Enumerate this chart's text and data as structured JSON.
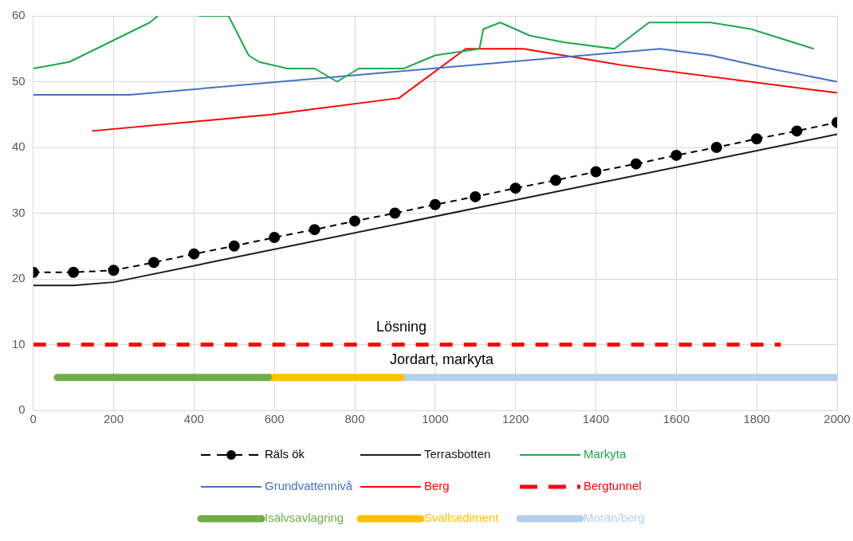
{
  "chart_data": {
    "type": "line",
    "xlim": [
      0,
      2000
    ],
    "xticks": [
      0,
      200,
      400,
      600,
      800,
      1000,
      1200,
      1400,
      1600,
      1800,
      2000
    ],
    "ylim": [
      0,
      60
    ],
    "yticks": [
      0,
      10,
      20,
      30,
      40,
      50,
      60
    ],
    "grid": true,
    "legend": "bottom",
    "annotations": [
      "Lösning",
      "Jordart, markyta"
    ],
    "series": [
      {
        "name": "Räls ök",
        "color": "#000000",
        "line_style": "dashed",
        "marker": "circle",
        "x": [
          0,
          100,
          200,
          300,
          400,
          500,
          600,
          700,
          800,
          900,
          1000,
          1100,
          1200,
          1300,
          1400,
          1500,
          1600,
          1700,
          1800,
          1900,
          2000
        ],
        "values": [
          21,
          21,
          21.3,
          22.5,
          23.8,
          25,
          26.3,
          27.5,
          28.8,
          30,
          31.3,
          32.5,
          33.8,
          35,
          36.3,
          37.5,
          38.8,
          40,
          41.3,
          42.5,
          43.8
        ]
      },
      {
        "name": "Terrasbotten",
        "color": "#1a1a1a",
        "line_style": "solid",
        "marker": "none",
        "x": [
          0,
          100,
          200,
          2000
        ],
        "values": [
          19,
          19,
          19.5,
          42
        ]
      },
      {
        "name": "Markyta",
        "color": "#1ea84f",
        "line_style": "solid",
        "marker": "none",
        "x": [
          0,
          90,
          290,
          310,
          360,
          412,
          440,
          486,
          536,
          562,
          632,
          700,
          756,
          810,
          922,
          1000,
          1110,
          1120,
          1162,
          1236,
          1320,
          1446,
          1532,
          1686,
          1786,
          1942
        ],
        "values": [
          52,
          53,
          59,
          60,
          null,
          60,
          60,
          60,
          54,
          53,
          52,
          52,
          50,
          52,
          52,
          54,
          55,
          58,
          59,
          57,
          56,
          55,
          59,
          59,
          58,
          55
        ]
      },
      {
        "name": "Grundvattennivå",
        "color": "#4472c4",
        "line_style": "solid",
        "marker": "none",
        "x": [
          0,
          240,
          1560,
          1686,
          1832,
          2000
        ],
        "values": [
          48,
          48,
          55,
          54,
          52,
          50
        ]
      },
      {
        "name": "Berg",
        "color": "#ff0000",
        "line_style": "solid",
        "marker": "none",
        "x": [
          146,
          592,
          910,
          1076,
          1220,
          1466,
          2000
        ],
        "values": [
          42.5,
          45,
          47.5,
          55,
          55,
          52.5,
          48.3
        ]
      },
      {
        "name": "Bergtunnel",
        "color": "#ff0000",
        "line_style": "dashed",
        "marker": "none",
        "x": [
          0,
          1860
        ],
        "values": [
          10,
          10
        ]
      },
      {
        "name": "Isälvsavlagring",
        "color": "#70ad47",
        "line_style": "solid",
        "marker": "none",
        "x": [
          60,
          585
        ],
        "values": [
          5,
          5
        ]
      },
      {
        "name": "Svallsediment",
        "color": "#ffc000",
        "line_style": "solid",
        "marker": "none",
        "x": [
          585,
          915
        ],
        "values": [
          5,
          5
        ]
      },
      {
        "name": "Morän/berg",
        "color": "#b4d0ec",
        "line_style": "solid",
        "marker": "none",
        "x": [
          915,
          2000
        ],
        "values": [
          5,
          5
        ]
      }
    ]
  }
}
